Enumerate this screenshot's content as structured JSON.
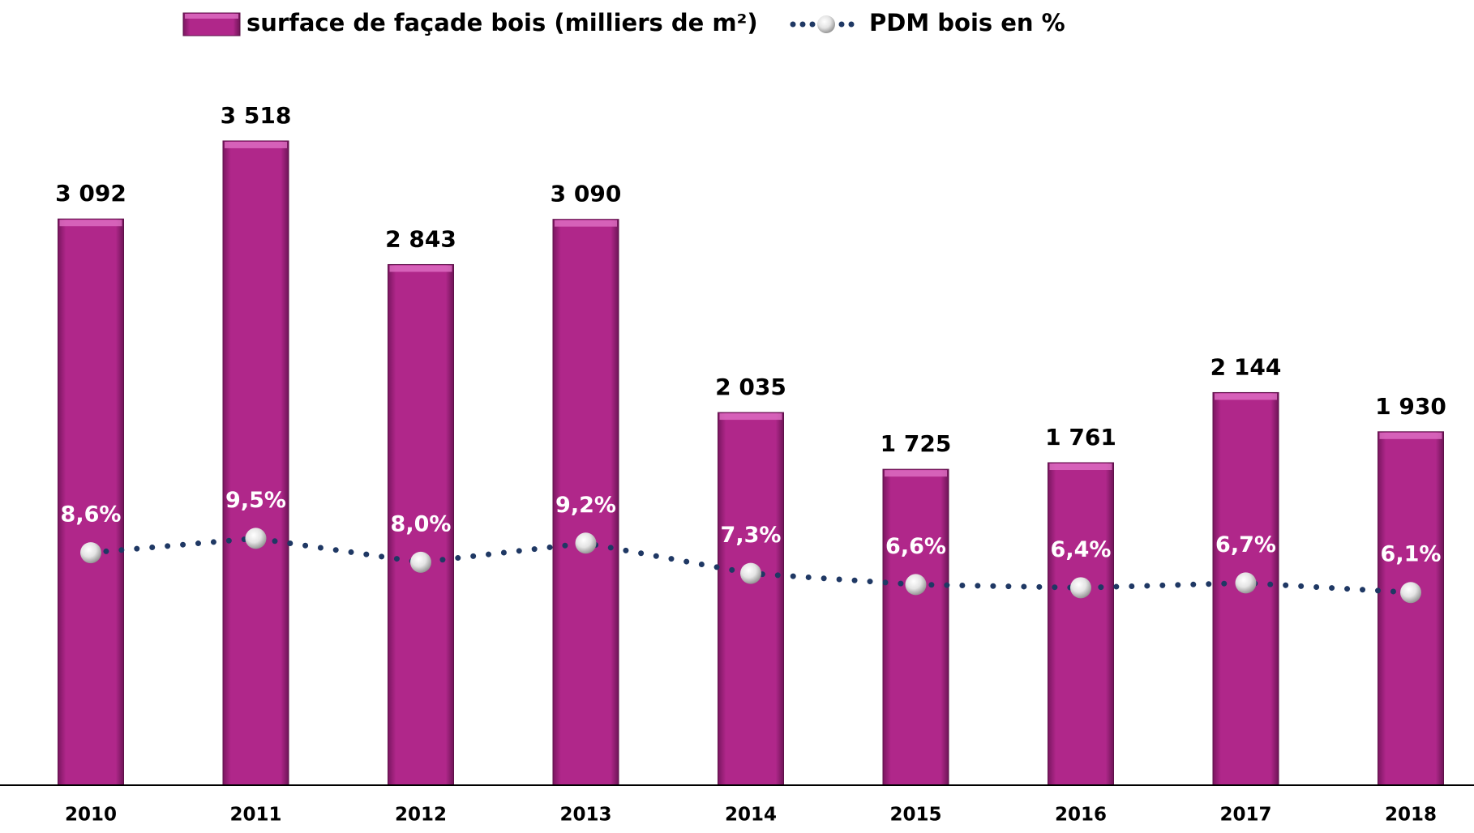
{
  "chart_data": {
    "type": "bar",
    "categories": [
      "2010",
      "2011",
      "2012",
      "2013",
      "2014",
      "2015",
      "2016",
      "2017",
      "2018"
    ],
    "series": [
      {
        "name": "surface de façade bois (milliers de m²)",
        "type": "bar",
        "color": "#b0278a",
        "values": [
          3092,
          3518,
          2843,
          3090,
          2035,
          1725,
          1761,
          2144,
          1930
        ],
        "value_labels": [
          "3 092",
          "3 518",
          "2 843",
          "3 090",
          "2 035",
          "1 725",
          "1 761",
          "2 144",
          "1 930"
        ]
      },
      {
        "name": "PDM  bois en %",
        "type": "line",
        "axis": "y2",
        "color": "#1f3864",
        "values": [
          8.6,
          9.5,
          8.0,
          9.2,
          7.3,
          6.6,
          6.4,
          6.7,
          6.1
        ],
        "value_labels": [
          "8,6%",
          "9,5%",
          "8,0%",
          "9,2%",
          "7,3%",
          "6,6%",
          "6,4%",
          "6,7%",
          "6,1%"
        ]
      }
    ],
    "ylim": [
      0,
      4000
    ],
    "y2lim": [
      -6,
      40
    ]
  }
}
